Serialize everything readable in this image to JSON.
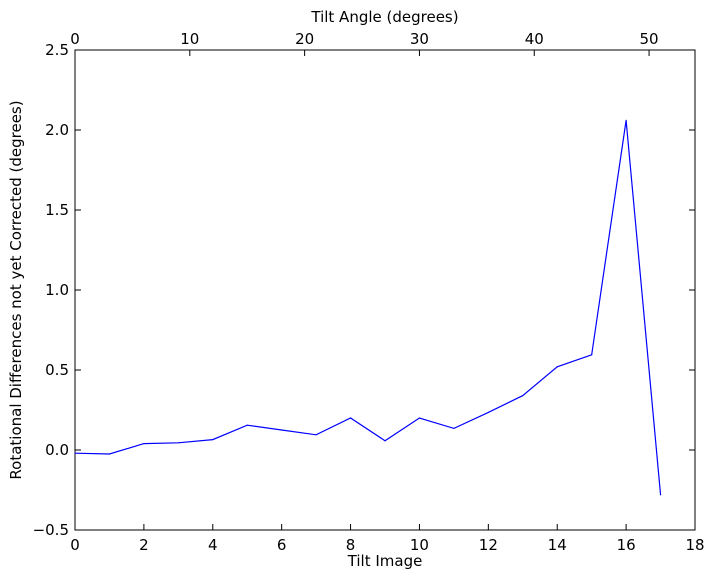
{
  "chart_data": {
    "type": "line",
    "xlabel": "Tilt Image",
    "ylabel": "Rotational Differences not yet Corrected (degrees)",
    "top_xlabel": "Tilt Angle (degrees)",
    "xlim": [
      0,
      18
    ],
    "ylim": [
      -0.5,
      2.5
    ],
    "top_xlim": [
      0,
      54
    ],
    "x_ticks": [
      0,
      2,
      4,
      6,
      8,
      10,
      12,
      14,
      16,
      18
    ],
    "x_tick_labels": [
      "0",
      "2",
      "4",
      "6",
      "8",
      "10",
      "12",
      "14",
      "16",
      "18"
    ],
    "y_ticks": [
      -0.5,
      0.0,
      0.5,
      1.0,
      1.5,
      2.0,
      2.5
    ],
    "y_tick_labels": [
      "−0.5",
      "0.0",
      "0.5",
      "1.0",
      "1.5",
      "2.0",
      "2.5"
    ],
    "top_x_ticks": [
      0,
      10,
      20,
      30,
      40,
      50
    ],
    "top_x_tick_labels": [
      "0",
      "10",
      "20",
      "30",
      "40",
      "50"
    ],
    "grid": false,
    "series": [
      {
        "color": "#0000ff",
        "x": [
          0,
          1,
          2,
          3,
          4,
          5,
          6,
          7,
          8,
          9,
          10,
          11,
          12,
          13,
          14,
          15,
          16,
          17
        ],
        "values": [
          -0.02,
          -0.025,
          0.04,
          0.045,
          0.065,
          0.155,
          0.125,
          0.095,
          0.2,
          0.058,
          0.2,
          0.135,
          0.235,
          0.34,
          0.52,
          0.595,
          2.06,
          -0.28
        ]
      }
    ]
  }
}
